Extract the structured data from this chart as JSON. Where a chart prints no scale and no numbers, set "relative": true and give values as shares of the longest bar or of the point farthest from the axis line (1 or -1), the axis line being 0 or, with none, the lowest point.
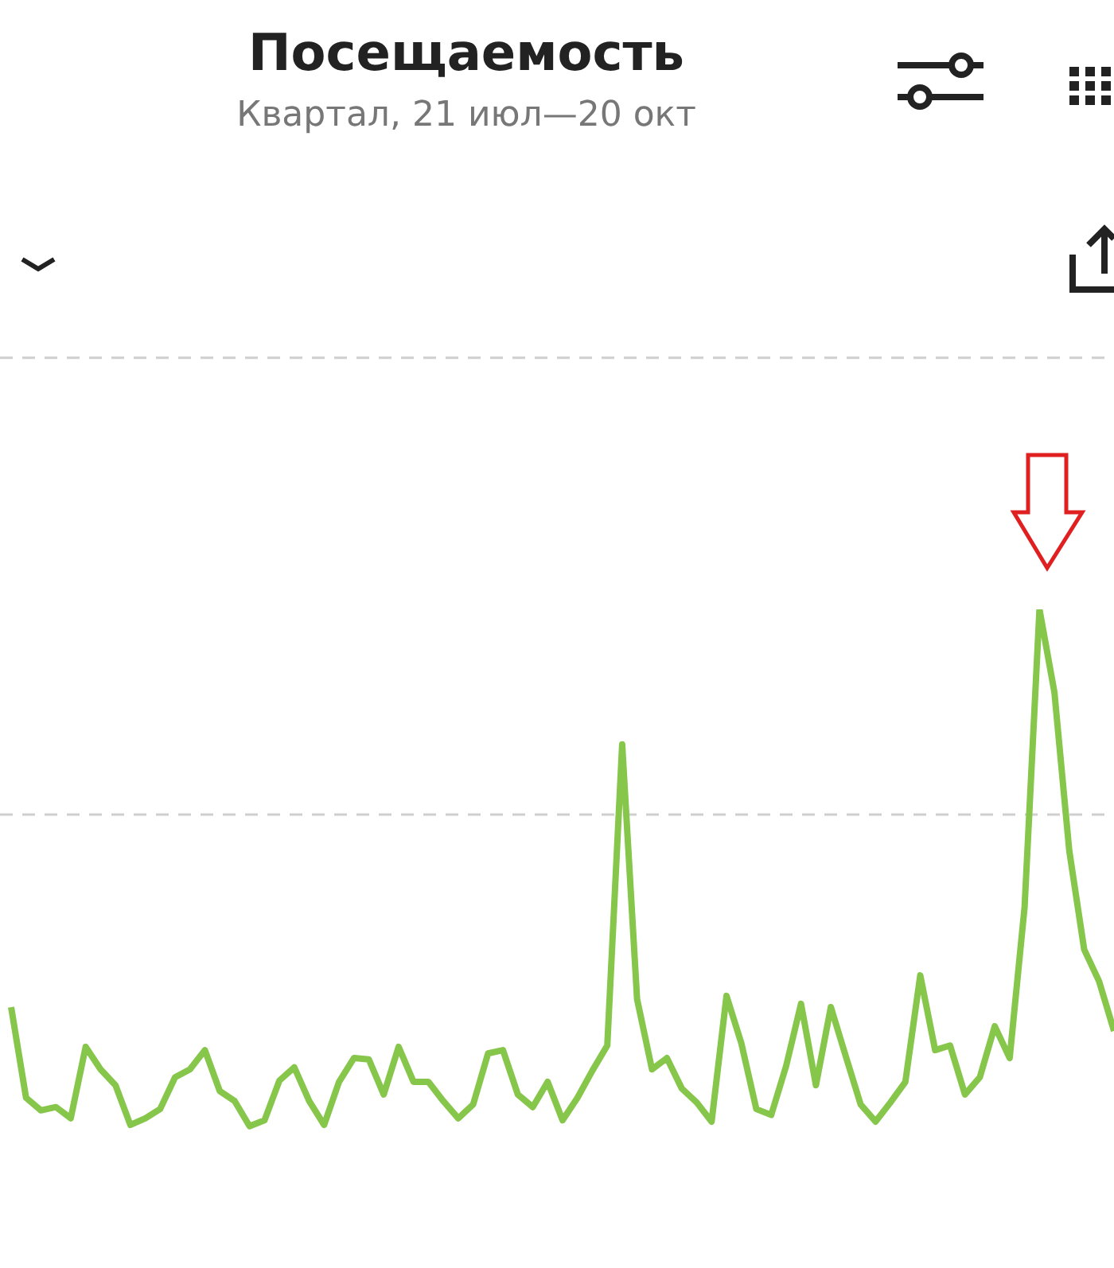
{
  "chart_data": {
    "type": "line",
    "title": "Посещаемость",
    "subtitle": "Квартал, 21 июл—20 окт",
    "relative": true,
    "marker": "none",
    "line_style": "solid",
    "ref_lines": [
      {
        "axis": "y",
        "value": 0.69,
        "color": "#cfcfcf",
        "line_style": "dashed"
      },
      {
        "axis": "y",
        "value": 1.38,
        "color": "#cfcfcf",
        "line_style": "dashed"
      }
    ],
    "categories": [
      null,
      null,
      null,
      null,
      null,
      null,
      null,
      null,
      null,
      null,
      null,
      null,
      null,
      null,
      null,
      null,
      null,
      null,
      null,
      null,
      null,
      null,
      null,
      null,
      null,
      null,
      null,
      null,
      null,
      null,
      null,
      null,
      null,
      null,
      null,
      null,
      null,
      null,
      null,
      null,
      null,
      null,
      null,
      null,
      null,
      null,
      null,
      null,
      null,
      null,
      null,
      null,
      null,
      null,
      null,
      null,
      null,
      null,
      null,
      null,
      null,
      null,
      null,
      null,
      null,
      null,
      null,
      null,
      null,
      null,
      null,
      null,
      null,
      null,
      null
    ],
    "series": [
      {
        "color": "#86c64a",
        "values": [
          0.399,
          0.262,
          0.243,
          0.248,
          0.231,
          0.339,
          0.305,
          0.281,
          0.221,
          0.231,
          0.245,
          0.293,
          0.305,
          0.334,
          0.272,
          0.257,
          0.219,
          0.228,
          0.288,
          0.308,
          0.257,
          0.221,
          0.286,
          0.322,
          0.32,
          0.267,
          0.339,
          0.286,
          0.286,
          0.257,
          0.231,
          0.252,
          0.329,
          0.334,
          0.267,
          0.248,
          0.286,
          0.228,
          0.262,
          0.303,
          0.341,
          0.796,
          0.411,
          0.305,
          0.322,
          0.276,
          0.255,
          0.226,
          0.416,
          0.344,
          0.245,
          0.236,
          0.31,
          0.404,
          0.281,
          0.399,
          0.325,
          0.252,
          0.226,
          0.255,
          0.286,
          0.447,
          0.334,
          0.341,
          0.267,
          0.293,
          0.37,
          0.322,
          0.55,
          1,
          0.875,
          0.635,
          0.486,
          0.438,
          0.363
        ]
      }
    ]
  }
}
